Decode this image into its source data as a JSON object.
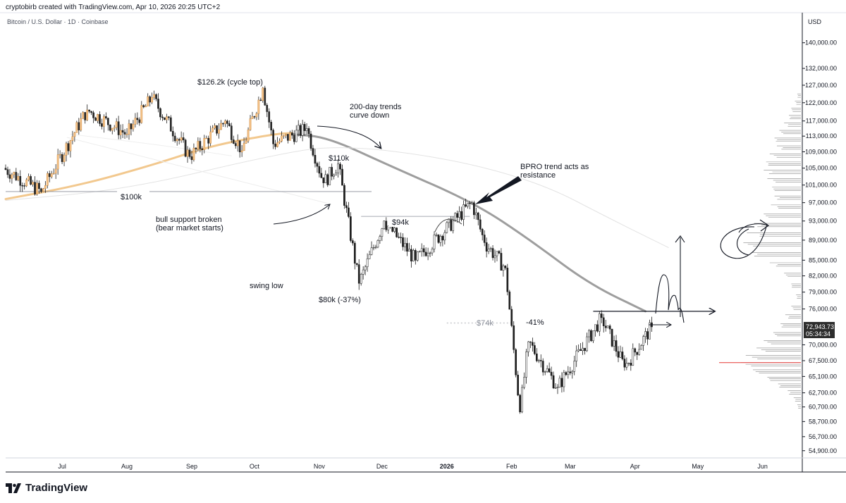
{
  "header": {
    "created_by": "cryptobirb created with TradingView.com, Apr 10, 2026 20:25 UTC+2",
    "symbol": "Bitcoin / U.S. Dollar · 1D · Coinbase"
  },
  "brand": {
    "name": "TradingView",
    "icon": "tradingview-logo-icon"
  },
  "chart_data": {
    "type": "candlestick",
    "currency": "USD",
    "price_axis": {
      "label": "USD",
      "ticks": [
        "140,000.00",
        "132,000.00",
        "127,000.00",
        "122,000.00",
        "117,000.00",
        "113,000.00",
        "109,000.00",
        "105,000.00",
        "101,000.00",
        "97,000.00",
        "93,000.00",
        "89,000.00",
        "85,000.00",
        "82,000.00",
        "79,000.00",
        "76,000.00",
        "72,943.73",
        "70,000.00",
        "67,500.00",
        "65,100.00",
        "62,700.00",
        "60,700.00",
        "58,700.00",
        "56,700.00",
        "54,900.00"
      ],
      "tick_values": [
        140000,
        132000,
        127000,
        122000,
        117000,
        113000,
        109000,
        105000,
        101000,
        97000,
        93000,
        89000,
        85000,
        82000,
        79000,
        76000,
        72943.73,
        70000,
        67500,
        65100,
        62700,
        60700,
        58700,
        56700,
        54900
      ],
      "range": [
        54000,
        150000
      ],
      "scale": "log"
    },
    "current_price": {
      "value": "72,943.73",
      "countdown": "05:34:34",
      "price": 72943.73
    },
    "time_axis": {
      "labels": [
        "Jul",
        "Aug",
        "Sep",
        "Oct",
        "Nov",
        "Dec",
        "2026",
        "Jan",
        "Feb",
        "Mar",
        "Apr",
        "May",
        "Jun"
      ],
      "dates": [
        "2025-07-01",
        "2025-08-01",
        "2025-09-01",
        "2025-10-01",
        "2025-11-01",
        "2025-12-01",
        "2026-01-01",
        "2026-01-01",
        "2026-02-01",
        "2026-03-01",
        "2026-04-01",
        "2026-05-01",
        "2026-06-01"
      ],
      "range": [
        "2025-06-04",
        "2026-06-20"
      ]
    },
    "candles_source": "synthetic reconstruction through key points",
    "key_points": [
      {
        "date": "2025-06-04",
        "price": 105000
      },
      {
        "date": "2025-06-22",
        "price": 99500
      },
      {
        "date": "2025-07-14",
        "price": 120000
      },
      {
        "date": "2025-08-02",
        "price": 113500
      },
      {
        "date": "2025-08-14",
        "price": 123500
      },
      {
        "date": "2025-09-01",
        "price": 107800
      },
      {
        "date": "2025-09-18",
        "price": 117000
      },
      {
        "date": "2025-09-26",
        "price": 109300
      },
      {
        "date": "2025-10-06",
        "price": 126200
      },
      {
        "date": "2025-10-11",
        "price": 111000
      },
      {
        "date": "2025-10-27",
        "price": 115000
      },
      {
        "date": "2025-11-04",
        "price": 101500
      },
      {
        "date": "2025-11-11",
        "price": 106000
      },
      {
        "date": "2025-11-21",
        "price": 80600
      },
      {
        "date": "2025-12-03",
        "price": 93000
      },
      {
        "date": "2025-12-18",
        "price": 85000
      },
      {
        "date": "2026-01-14",
        "price": 97000
      },
      {
        "date": "2026-01-20",
        "price": 88500
      },
      {
        "date": "2026-01-30",
        "price": 83500
      },
      {
        "date": "2026-02-06",
        "price": 60000
      },
      {
        "date": "2026-02-10",
        "price": 70500
      },
      {
        "date": "2026-02-24",
        "price": 63500
      },
      {
        "date": "2026-03-17",
        "price": 74500
      },
      {
        "date": "2026-03-28",
        "price": 66500
      },
      {
        "date": "2026-04-10",
        "price": 72943.73
      }
    ],
    "moving_averages": [
      {
        "name": "",
        "color": "#f2c88e",
        "points": [
          {
            "date": "2025-06-04",
            "price": 97800
          },
          {
            "date": "2025-07-10",
            "price": 101000
          },
          {
            "date": "2025-08-15",
            "price": 106000
          },
          {
            "date": "2025-09-10",
            "price": 110500
          },
          {
            "date": "2025-10-10",
            "price": 113500
          },
          {
            "date": "2025-10-19",
            "price": 113800
          }
        ]
      },
      {
        "name": "",
        "color": "#9e9e9e",
        "points": [
          {
            "date": "2025-10-19",
            "price": 113500
          },
          {
            "date": "2025-11-05",
            "price": 112700
          },
          {
            "date": "2025-12-05",
            "price": 105500
          },
          {
            "date": "2026-01-14",
            "price": 97000
          },
          {
            "date": "2026-02-10",
            "price": 89000
          },
          {
            "date": "2026-03-10",
            "price": 80500
          },
          {
            "date": "2026-04-06",
            "price": 75600
          }
        ]
      },
      {
        "name": "",
        "color": "#e3e3e3",
        "points": [
          {
            "date": "2025-06-04",
            "price": 97500
          },
          {
            "date": "2025-08-01",
            "price": 100000
          },
          {
            "date": "2025-10-08",
            "price": 108000
          },
          {
            "date": "2025-11-10",
            "price": 110800
          },
          {
            "date": "2026-01-01",
            "price": 107500
          },
          {
            "date": "2026-02-15",
            "price": 101500
          },
          {
            "date": "2026-03-20",
            "price": 93500
          },
          {
            "date": "2026-04-17",
            "price": 87500
          }
        ]
      },
      {
        "name": "",
        "color": "#efefef",
        "points": [
          {
            "date": "2025-07-05",
            "price": 113500
          },
          {
            "date": "2025-08-20",
            "price": 110500
          },
          {
            "date": "2025-09-20",
            "price": 108000
          }
        ]
      }
    ],
    "levels": [
      {
        "label": "$100k",
        "price": 99500,
        "from": "2025-06-04",
        "to": "2025-11-26",
        "style": "solid"
      },
      {
        "label": "$94k",
        "price": 94000,
        "from": "2025-11-21",
        "to": "2026-01-12",
        "style": "solid"
      },
      {
        "label": "$74k",
        "price": 73600,
        "from": "2026-01-01",
        "to": "2026-02-01",
        "style": "dotted"
      },
      {
        "label": "",
        "price": 75600,
        "from": "2026-03-12",
        "to": "2026-05-09",
        "style": "arrow"
      }
    ],
    "annotations": [
      {
        "text": "$126.2k (cycle top)"
      },
      {
        "text": "200-day trends\ncurve down"
      },
      {
        "text": "$110k"
      },
      {
        "text": "BPRO trend acts as\nresistance"
      },
      {
        "text": "$100k"
      },
      {
        "text": "bull support broken\n(bear market starts)"
      },
      {
        "text": "$94k"
      },
      {
        "text": "swing low"
      },
      {
        "text": "$80k (-37%)"
      },
      {
        "text": "$74k"
      },
      {
        "text": "-41%"
      }
    ],
    "volume_profile": {
      "visible": true,
      "bins": [
        {
          "price": 124500,
          "volume": 0.06
        },
        {
          "price": 122500,
          "volume": 0.1
        },
        {
          "price": 120500,
          "volume": 0.16
        },
        {
          "price": 118500,
          "volume": 0.2
        },
        {
          "price": 116500,
          "volume": 0.28
        },
        {
          "price": 114500,
          "volume": 0.36
        },
        {
          "price": 112500,
          "volume": 0.44
        },
        {
          "price": 110500,
          "volume": 0.4
        },
        {
          "price": 108500,
          "volume": 0.52
        },
        {
          "price": 106500,
          "volume": 0.58
        },
        {
          "price": 104500,
          "volume": 0.62
        },
        {
          "price": 102500,
          "volume": 0.56
        },
        {
          "price": 100500,
          "volume": 0.48
        },
        {
          "price": 98500,
          "volume": 0.44
        },
        {
          "price": 96500,
          "volume": 0.5
        },
        {
          "price": 94500,
          "volume": 0.62
        },
        {
          "price": 92500,
          "volume": 0.78
        },
        {
          "price": 90500,
          "volume": 0.9
        },
        {
          "price": 88500,
          "volume": 0.96
        },
        {
          "price": 86500,
          "volume": 0.82
        },
        {
          "price": 84500,
          "volume": 0.52
        },
        {
          "price": 82500,
          "volume": 0.28
        },
        {
          "price": 80500,
          "volume": 0.16
        },
        {
          "price": 78500,
          "volume": 0.08
        },
        {
          "price": 76500,
          "volume": 0.16
        },
        {
          "price": 75000,
          "volume": 0.26
        },
        {
          "price": 73500,
          "volume": 0.34
        },
        {
          "price": 72000,
          "volume": 0.46
        },
        {
          "price": 70700,
          "volume": 0.62
        },
        {
          "price": 69500,
          "volume": 0.74
        },
        {
          "price": 68300,
          "volume": 0.92
        },
        {
          "price": 67200,
          "volume": 1.0
        },
        {
          "price": 66100,
          "volume": 0.8
        },
        {
          "price": 65000,
          "volume": 0.56
        },
        {
          "price": 64000,
          "volume": 0.38
        },
        {
          "price": 63000,
          "volume": 0.22
        },
        {
          "price": 62000,
          "volume": 0.12
        },
        {
          "price": 61000,
          "volume": 0.06
        }
      ],
      "poc_price": 67200,
      "poc_color": "#e53935"
    },
    "grid": false,
    "legend": "none"
  }
}
